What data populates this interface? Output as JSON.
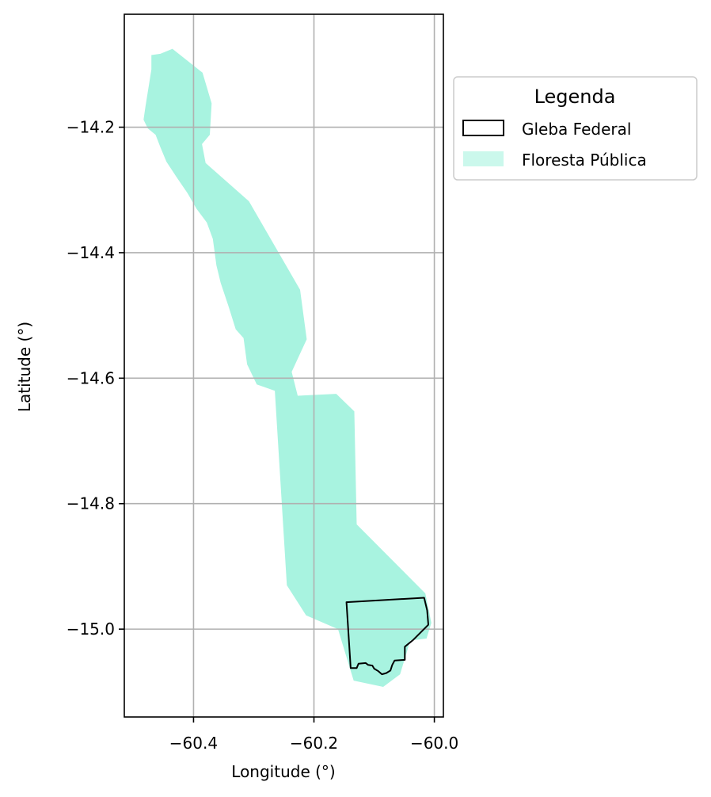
{
  "chart_data": {
    "type": "map",
    "xlabel": "Longitude (°)",
    "ylabel": "Latitude (°)",
    "xlim": [
      -60.515,
      -59.985
    ],
    "ylim": [
      -15.14,
      -14.02
    ],
    "xticks": [
      -60.4,
      -60.2,
      -60.0
    ],
    "yticks": [
      -14.2,
      -14.4,
      -14.6,
      -14.8,
      -15.0
    ],
    "xtick_labels": [
      "−60.4",
      "−60.2",
      "−60.0"
    ],
    "ytick_labels": [
      "−14.2",
      "−14.4",
      "−14.6",
      "−14.8",
      "−15.0"
    ],
    "grid": true,
    "legend": {
      "title": "Legenda",
      "placement": "outside-upper-right",
      "entries": [
        {
          "label": "Gleba Federal",
          "style": "outline",
          "color": "#000000"
        },
        {
          "label": "Floresta Pública",
          "style": "fill",
          "color": "#a8f3e0"
        }
      ]
    },
    "layers": [
      {
        "name": "Floresta Pública",
        "fill": "#a8f3e0",
        "coordinates": [
          [
            -60.435,
            -14.075
          ],
          [
            -60.385,
            -14.113
          ],
          [
            -60.37,
            -14.162
          ],
          [
            -60.373,
            -14.212
          ],
          [
            -60.386,
            -14.227
          ],
          [
            -60.38,
            -14.257
          ],
          [
            -60.308,
            -14.318
          ],
          [
            -60.223,
            -14.459
          ],
          [
            -60.212,
            -14.538
          ],
          [
            -60.237,
            -14.59
          ],
          [
            -60.227,
            -14.628
          ],
          [
            -60.163,
            -14.625
          ],
          [
            -60.133,
            -14.653
          ],
          [
            -60.129,
            -14.833
          ],
          [
            -60.015,
            -14.943
          ],
          [
            -60.005,
            -14.99
          ],
          [
            -60.013,
            -15.015
          ],
          [
            -60.04,
            -15.018
          ],
          [
            -60.057,
            -15.072
          ],
          [
            -60.085,
            -15.092
          ],
          [
            -60.134,
            -15.082
          ],
          [
            -60.16,
            -15.0
          ],
          [
            -60.213,
            -14.978
          ],
          [
            -60.245,
            -14.93
          ],
          [
            -60.265,
            -14.62
          ],
          [
            -60.295,
            -14.61
          ],
          [
            -60.311,
            -14.578
          ],
          [
            -60.317,
            -14.536
          ],
          [
            -60.33,
            -14.522
          ],
          [
            -60.342,
            -14.485
          ],
          [
            -60.355,
            -14.448
          ],
          [
            -60.362,
            -14.42
          ],
          [
            -60.368,
            -14.378
          ],
          [
            -60.378,
            -14.352
          ],
          [
            -60.395,
            -14.33
          ],
          [
            -60.41,
            -14.305
          ],
          [
            -60.428,
            -14.28
          ],
          [
            -60.445,
            -14.255
          ],
          [
            -60.455,
            -14.232
          ],
          [
            -60.463,
            -14.212
          ],
          [
            -60.476,
            -14.202
          ],
          [
            -60.483,
            -14.188
          ],
          [
            -60.48,
            -14.168
          ],
          [
            -60.475,
            -14.138
          ],
          [
            -60.47,
            -14.108
          ],
          [
            -60.47,
            -14.085
          ],
          [
            -60.455,
            -14.083
          ]
        ]
      },
      {
        "name": "Gleba Federal",
        "stroke": "#000000",
        "coordinates": [
          [
            -60.146,
            -14.957
          ],
          [
            -60.017,
            -14.95
          ],
          [
            -60.012,
            -14.97
          ],
          [
            -60.01,
            -14.993
          ],
          [
            -60.035,
            -15.017
          ],
          [
            -60.049,
            -15.028
          ],
          [
            -60.049,
            -15.049
          ],
          [
            -60.066,
            -15.05
          ],
          [
            -60.07,
            -15.057
          ],
          [
            -60.073,
            -15.066
          ],
          [
            -60.08,
            -15.07
          ],
          [
            -60.087,
            -15.072
          ],
          [
            -60.093,
            -15.067
          ],
          [
            -60.1,
            -15.063
          ],
          [
            -60.103,
            -15.058
          ],
          [
            -60.11,
            -15.057
          ],
          [
            -60.114,
            -15.054
          ],
          [
            -60.126,
            -15.055
          ],
          [
            -60.129,
            -15.062
          ],
          [
            -60.139,
            -15.062
          ],
          [
            -60.146,
            -14.957
          ]
        ]
      }
    ]
  }
}
